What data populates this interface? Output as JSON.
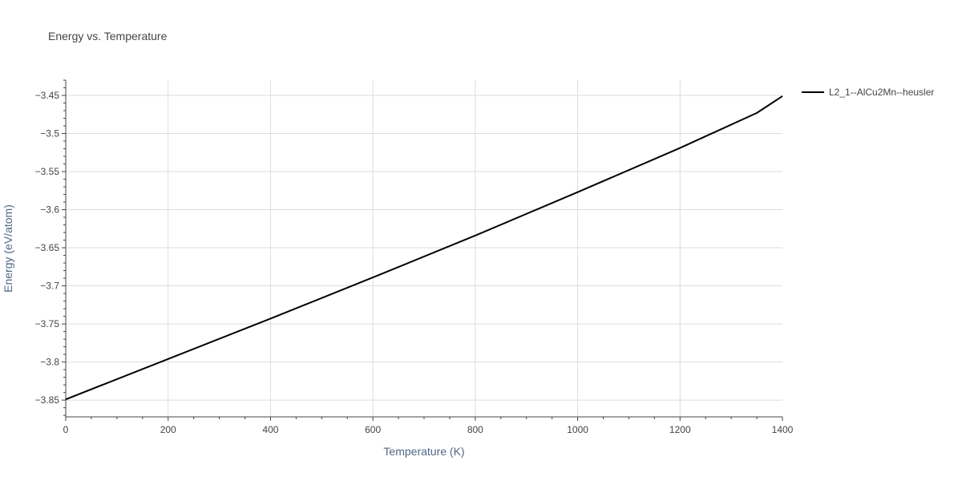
{
  "chart_data": {
    "type": "line",
    "title": "Energy vs. Temperature",
    "xlabel": "Temperature (K)",
    "ylabel": "Energy (eV/atom)",
    "xlim": [
      0,
      1400
    ],
    "ylim": [
      -3.872,
      -3.43
    ],
    "xticks": [
      0,
      200,
      400,
      600,
      800,
      1000,
      1200,
      1400
    ],
    "xtick_labels": [
      "0",
      "200",
      "400",
      "600",
      "800",
      "1000",
      "1200",
      "1400"
    ],
    "yticks": [
      -3.85,
      -3.8,
      -3.75,
      -3.7,
      -3.65,
      -3.6,
      -3.55,
      -3.5,
      -3.45
    ],
    "ytick_labels": [
      "−3.85",
      "−3.8",
      "−3.75",
      "−3.7",
      "−3.65",
      "−3.6",
      "−3.55",
      "−3.5",
      "−3.45"
    ],
    "grid": true,
    "legend_position": "top-right",
    "series": [
      {
        "name": "L2_1--AlCu2Mn--heusler",
        "color": "#000000",
        "x": [
          0,
          200,
          400,
          600,
          800,
          1000,
          1200,
          1350,
          1400
        ],
        "y": [
          -3.849,
          -3.796,
          -3.743,
          -3.689,
          -3.634,
          -3.577,
          -3.519,
          -3.473,
          -3.451
        ]
      }
    ]
  }
}
